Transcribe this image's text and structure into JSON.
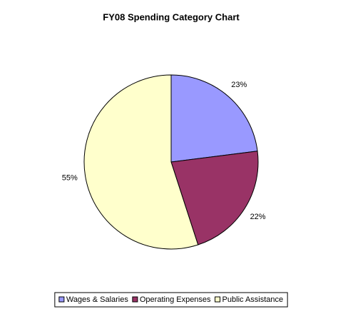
{
  "chart_data": {
    "type": "pie",
    "title": "FY08 Spending Category Chart",
    "categories": [
      "Wages & Salaries",
      "Operating Expenses",
      "Public Assistance"
    ],
    "values": [
      23,
      22,
      55
    ],
    "value_labels": [
      "23%",
      "22%",
      "55%"
    ],
    "colors": [
      "#9999ff",
      "#993366",
      "#ffffcc"
    ],
    "legend": "bottom"
  }
}
